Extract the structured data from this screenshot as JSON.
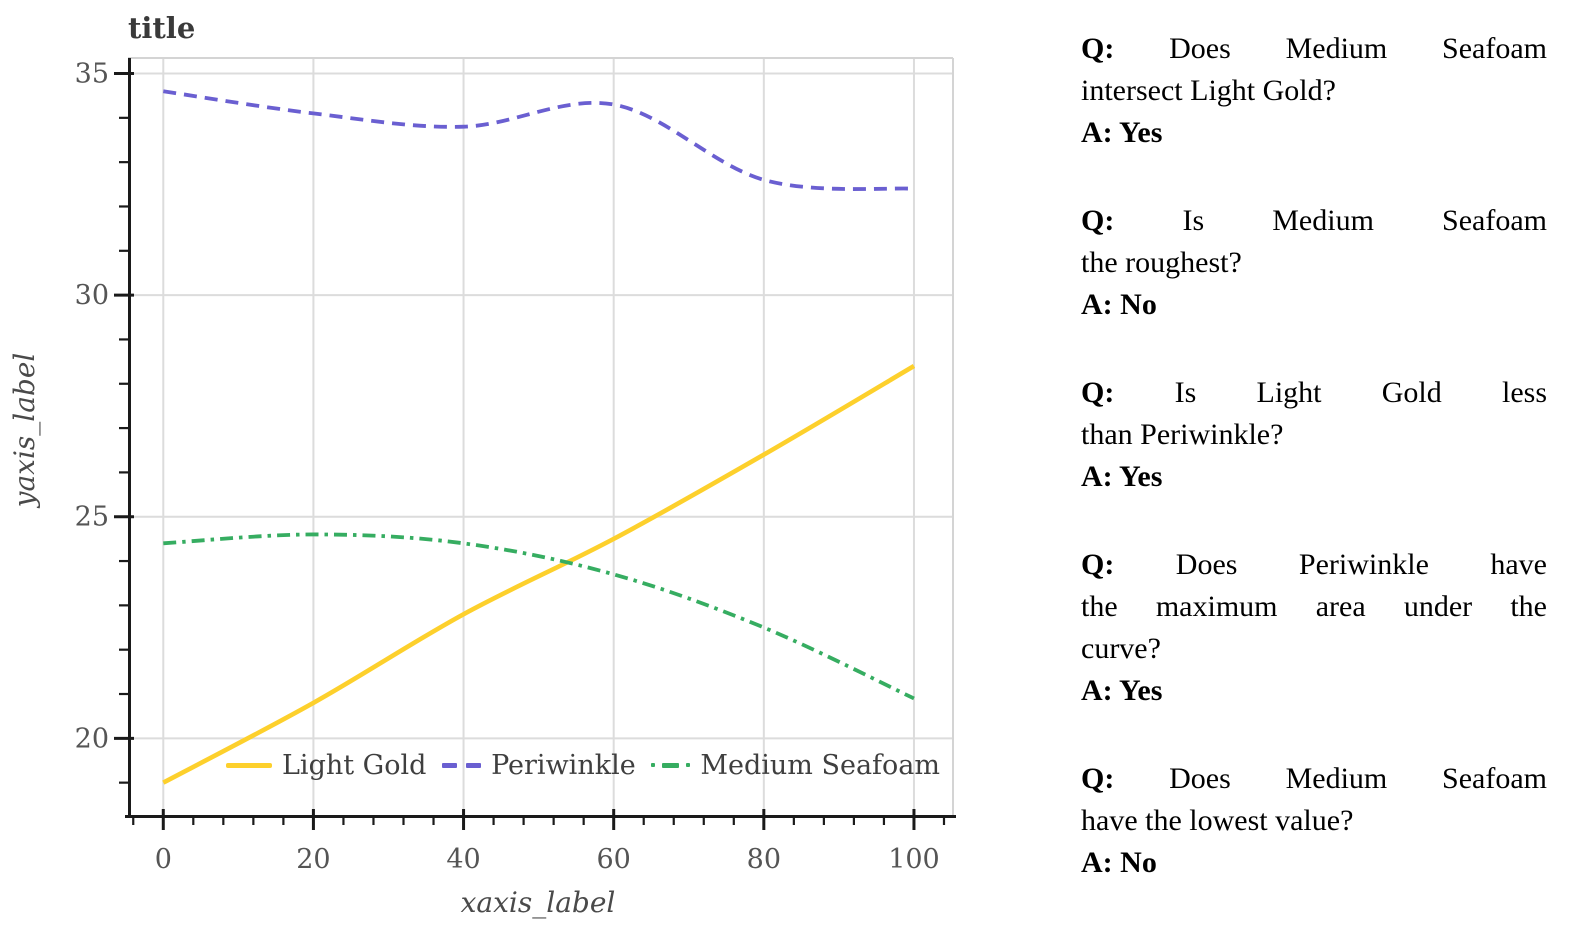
{
  "chart_data": {
    "type": "line",
    "title": "title",
    "xlabel": "xaxis_label",
    "ylabel": "yaxis_label",
    "x": [
      0,
      20,
      40,
      60,
      80,
      100
    ],
    "series": [
      {
        "name": "Light Gold",
        "color": "#FDD02C",
        "style": "solid",
        "values": [
          19.0,
          20.8,
          22.8,
          24.5,
          26.4,
          28.4
        ]
      },
      {
        "name": "Periwinkle",
        "color": "#6A5FD1",
        "style": "dashed",
        "values": [
          34.6,
          34.1,
          33.8,
          34.3,
          32.6,
          32.4
        ]
      },
      {
        "name": "Medium Seafoam",
        "color": "#36AD61",
        "style": "dashdot",
        "values": [
          24.4,
          24.6,
          24.4,
          23.7,
          22.5,
          20.9
        ]
      }
    ],
    "xticks": [
      0,
      20,
      40,
      60,
      80,
      100
    ],
    "yticks": [
      20,
      25,
      30,
      35
    ],
    "xlim": [
      -4.7,
      105.2
    ],
    "ylim": [
      18.27,
      35.35
    ],
    "x_minor_step": 4,
    "y_minor_step": 1,
    "grid": true,
    "legend_position": "lower center",
    "grid_color": "#dcdcdc",
    "frame_color": "#d4d4d4",
    "axis_color": "#1a1a1a"
  },
  "qa": {
    "items": [
      {
        "q_lines": [
          "Q: Does Medium Seafoam",
          "intersect Light Gold?"
        ],
        "a": "A: Yes"
      },
      {
        "q_lines": [
          "Q: Is Medium Seafoam",
          "the roughest?"
        ],
        "a": "A: No"
      },
      {
        "q_lines": [
          "Q: Is Light Gold less",
          "than Periwinkle?"
        ],
        "a": "A: Yes"
      },
      {
        "q_lines": [
          "Q: Does Periwinkle have",
          "the maximum area under the",
          "curve?"
        ],
        "a": "A: Yes"
      },
      {
        "q_lines": [
          "Q: Does Medium Seafoam",
          "have the lowest value?"
        ],
        "a": "A: No"
      }
    ]
  }
}
